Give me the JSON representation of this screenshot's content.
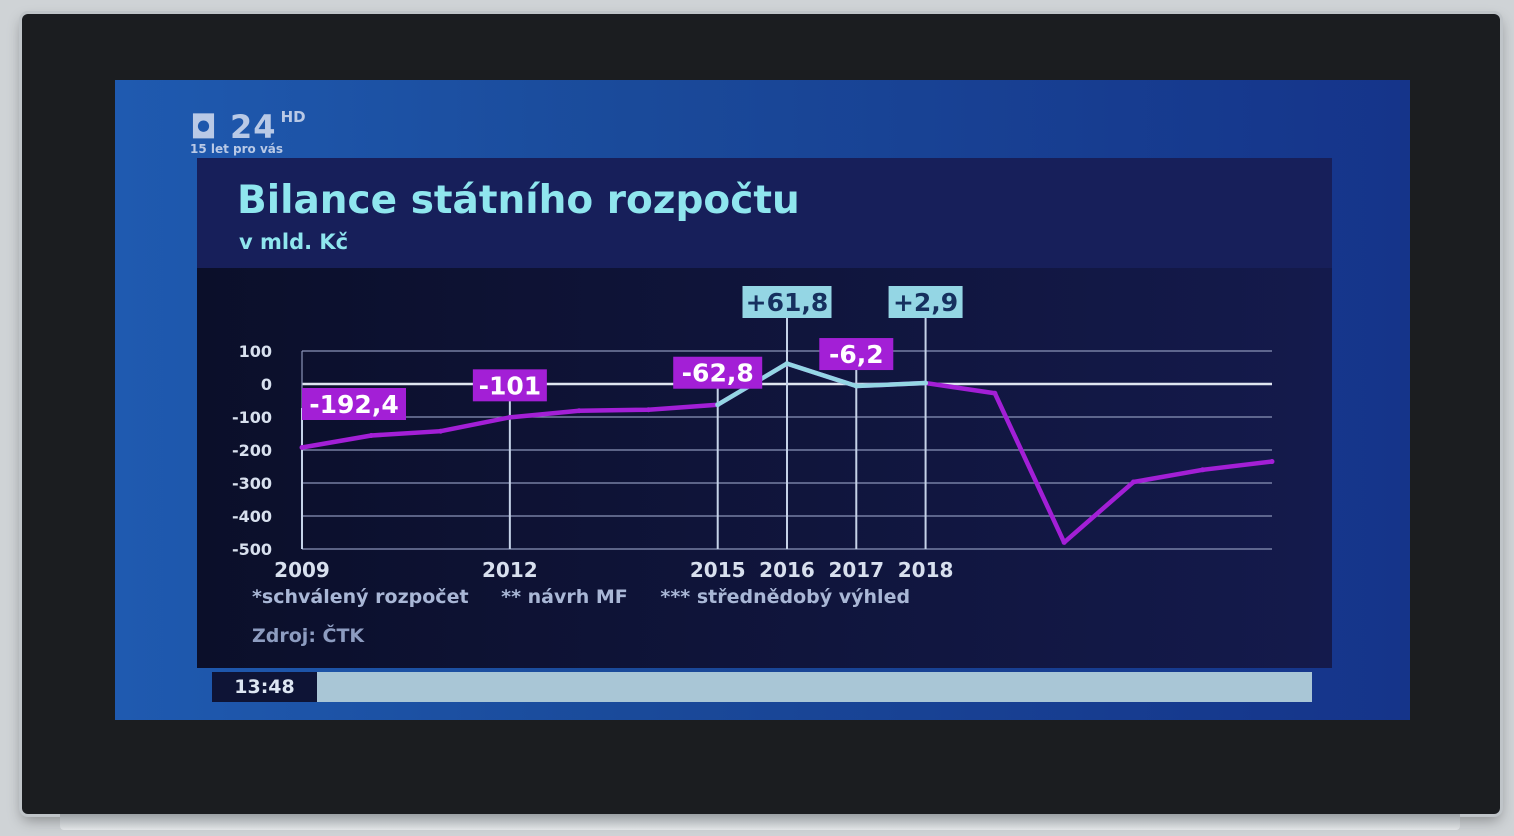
{
  "channel": {
    "logo": "24",
    "hd": "HD",
    "tagline": "15 let pro vás"
  },
  "colors": {
    "highlight": "#94d6e4",
    "series": "#a31fd6",
    "label_bg": "#a31fd6",
    "title": "#8fe6ee"
  },
  "chart_data": {
    "type": "line",
    "title": "Bilance státního rozpočtu",
    "subtitle": "v mld. Kč",
    "xlabel": "",
    "ylabel": "",
    "ylim": [
      -500,
      100
    ],
    "yticks": [
      100,
      0,
      -100,
      -200,
      -300,
      -400,
      -500
    ],
    "x_tick_labels": [
      "2009",
      "2012",
      "2015",
      "2016",
      "2017",
      "2018"
    ],
    "grid": true,
    "x": [
      2009,
      2010,
      2011,
      2012,
      2013,
      2014,
      2015,
      2016,
      2017,
      2018,
      2019,
      2020,
      2021,
      2022,
      2023
    ],
    "series": [
      {
        "values": [
          -192.4,
          -156,
          -143,
          -101,
          -81,
          -78,
          -62.8,
          61.8,
          -6.2,
          2.9,
          -28,
          -480,
          -297,
          -260,
          -235
        ]
      }
    ],
    "point_labels": [
      {
        "x": 2009,
        "text": "-192,4",
        "style": "purple"
      },
      {
        "x": 2012,
        "text": "-101",
        "style": "purple"
      },
      {
        "x": 2015,
        "text": "-62,8",
        "style": "purple"
      },
      {
        "x": 2016,
        "text": "+61,8",
        "style": "cyan"
      },
      {
        "x": 2017,
        "text": "-6,2",
        "style": "purple"
      },
      {
        "x": 2018,
        "text": "+2,9",
        "style": "cyan"
      }
    ],
    "highlight_segment": [
      2015,
      2018
    ]
  },
  "footnotes": [
    "*schválený rozpočet",
    "** návrh MF",
    "*** střednědobý výhled"
  ],
  "source": "Zdroj: ČTK",
  "clock": "13:48"
}
